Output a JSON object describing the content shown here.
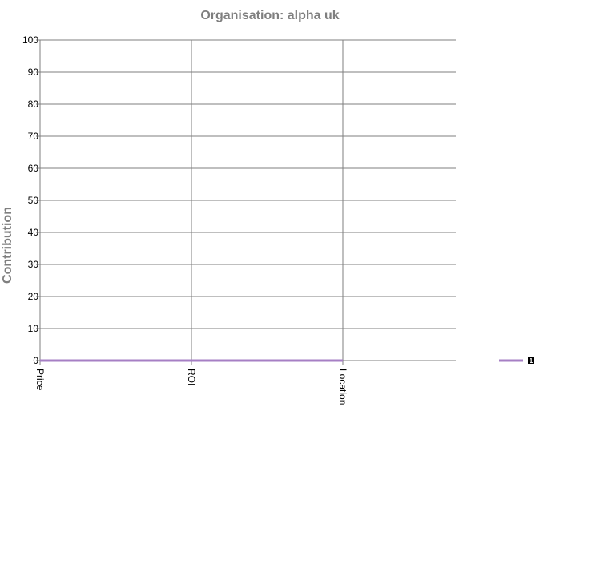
{
  "chart_data": {
    "type": "line",
    "title": "Organisation: alpha uk",
    "ylabel": "Contribution",
    "xlabel": "",
    "categories": [
      "Price",
      "ROI",
      "Location"
    ],
    "ylim": [
      0,
      100
    ],
    "yticks": [
      0,
      10,
      20,
      30,
      40,
      50,
      60,
      70,
      80,
      90,
      100
    ],
    "grid": true,
    "legend_position": "right",
    "series": [
      {
        "name": "1",
        "color": "#a67fc4",
        "values": [
          0,
          0,
          0
        ]
      }
    ]
  },
  "colors": {
    "grid": "#7f7f7f",
    "axis": "#7f7f7f",
    "title": "#7f7f7f",
    "tick_text": "#000000",
    "legend_box": "#000000"
  }
}
